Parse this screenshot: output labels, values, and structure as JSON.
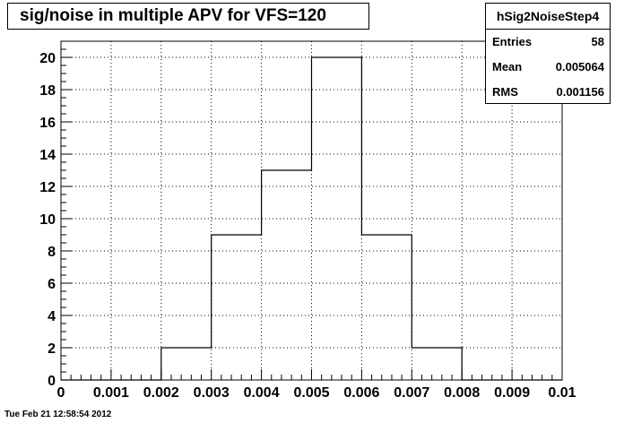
{
  "title": "sig/noise in multiple APV for VFS=120",
  "stats": {
    "name": "hSig2NoiseStep4",
    "rows": [
      {
        "label": "Entries",
        "value": "58"
      },
      {
        "label": "Mean",
        "value": "0.005064"
      },
      {
        "label": "RMS",
        "value": "0.001156"
      }
    ]
  },
  "timestamp": "Tue Feb 21 12:58:54 2012",
  "chart_data": {
    "type": "bar",
    "histogram": true,
    "title": "sig/noise in multiple APV for VFS=120",
    "xlabel": "",
    "ylabel": "",
    "bin_edges": [
      0,
      0.001,
      0.002,
      0.003,
      0.004,
      0.005,
      0.006,
      0.007,
      0.008,
      0.009,
      0.01
    ],
    "values": [
      0,
      0,
      2,
      9,
      13,
      20,
      9,
      2,
      0,
      0
    ],
    "xlim": [
      0,
      0.01
    ],
    "ylim": [
      0,
      21
    ],
    "x_ticks": [
      "0",
      "0.001",
      "0.002",
      "0.003",
      "0.004",
      "0.005",
      "0.006",
      "0.007",
      "0.008",
      "0.009",
      "0.01"
    ],
    "y_ticks": [
      "0",
      "2",
      "4",
      "6",
      "8",
      "10",
      "12",
      "14",
      "16",
      "18",
      "20"
    ],
    "grid": true,
    "legend": "none"
  }
}
